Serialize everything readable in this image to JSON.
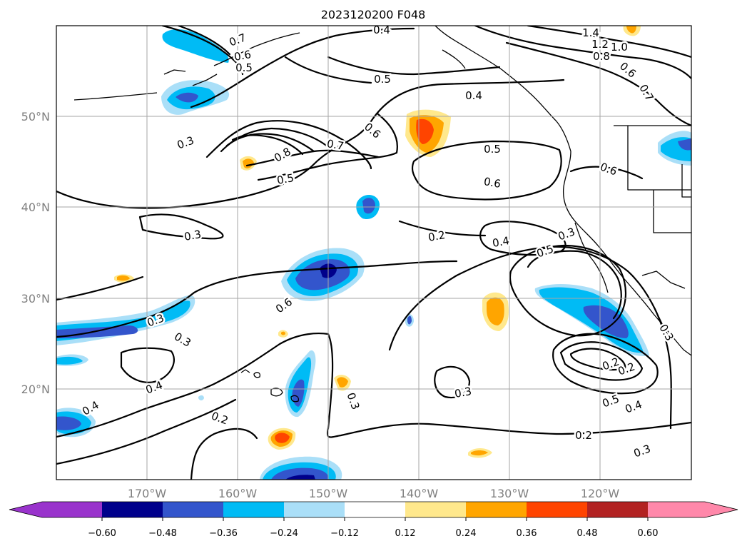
{
  "map": {
    "title": "2023120200 F048",
    "latitude_labels": [
      "50°N",
      "40°N",
      "30°N",
      "20°N"
    ],
    "longitude_labels": [
      "170°W",
      "160°W",
      "150°W",
      "140°W",
      "130°W",
      "120°W"
    ],
    "contour_labels": [
      "0.4",
      "0.7",
      "0.6",
      "0.5",
      "1.4",
      "1.2",
      "1.0",
      "0.8",
      "0.6",
      "0.7",
      "0.5",
      "0.4",
      "0.3",
      "0.6",
      "0.8",
      "0.7",
      "0.5",
      "0.6",
      "0.5",
      "0.6",
      "0.3",
      "0.2",
      "0.4",
      "0.3",
      "0.5",
      "0.6",
      "0.3",
      "0.3",
      "0.4",
      "0.4",
      "0.2",
      "0.3",
      "0.3",
      "0.2",
      "0.3",
      "0.5",
      "0.4",
      "0.2",
      "0.2",
      "0.3"
    ],
    "style": {
      "contour_color": "#000000",
      "grid_color": "#a6a6a6",
      "coastline_color": "#000000"
    }
  },
  "colorbar": {
    "tick_labels": [
      "-0.60",
      "-0.48",
      "-0.36",
      "-0.24",
      "-0.12",
      "0.12",
      "0.24",
      "0.36",
      "0.48",
      "0.60"
    ],
    "colors": [
      "#9933cc",
      "#00008b",
      "#3355cc",
      "#00bbf5",
      "#aadff8",
      "#ffffff",
      "#ffe88c",
      "#ffa500",
      "#ff4400",
      "#b22222",
      "#ff88aa"
    ]
  }
}
